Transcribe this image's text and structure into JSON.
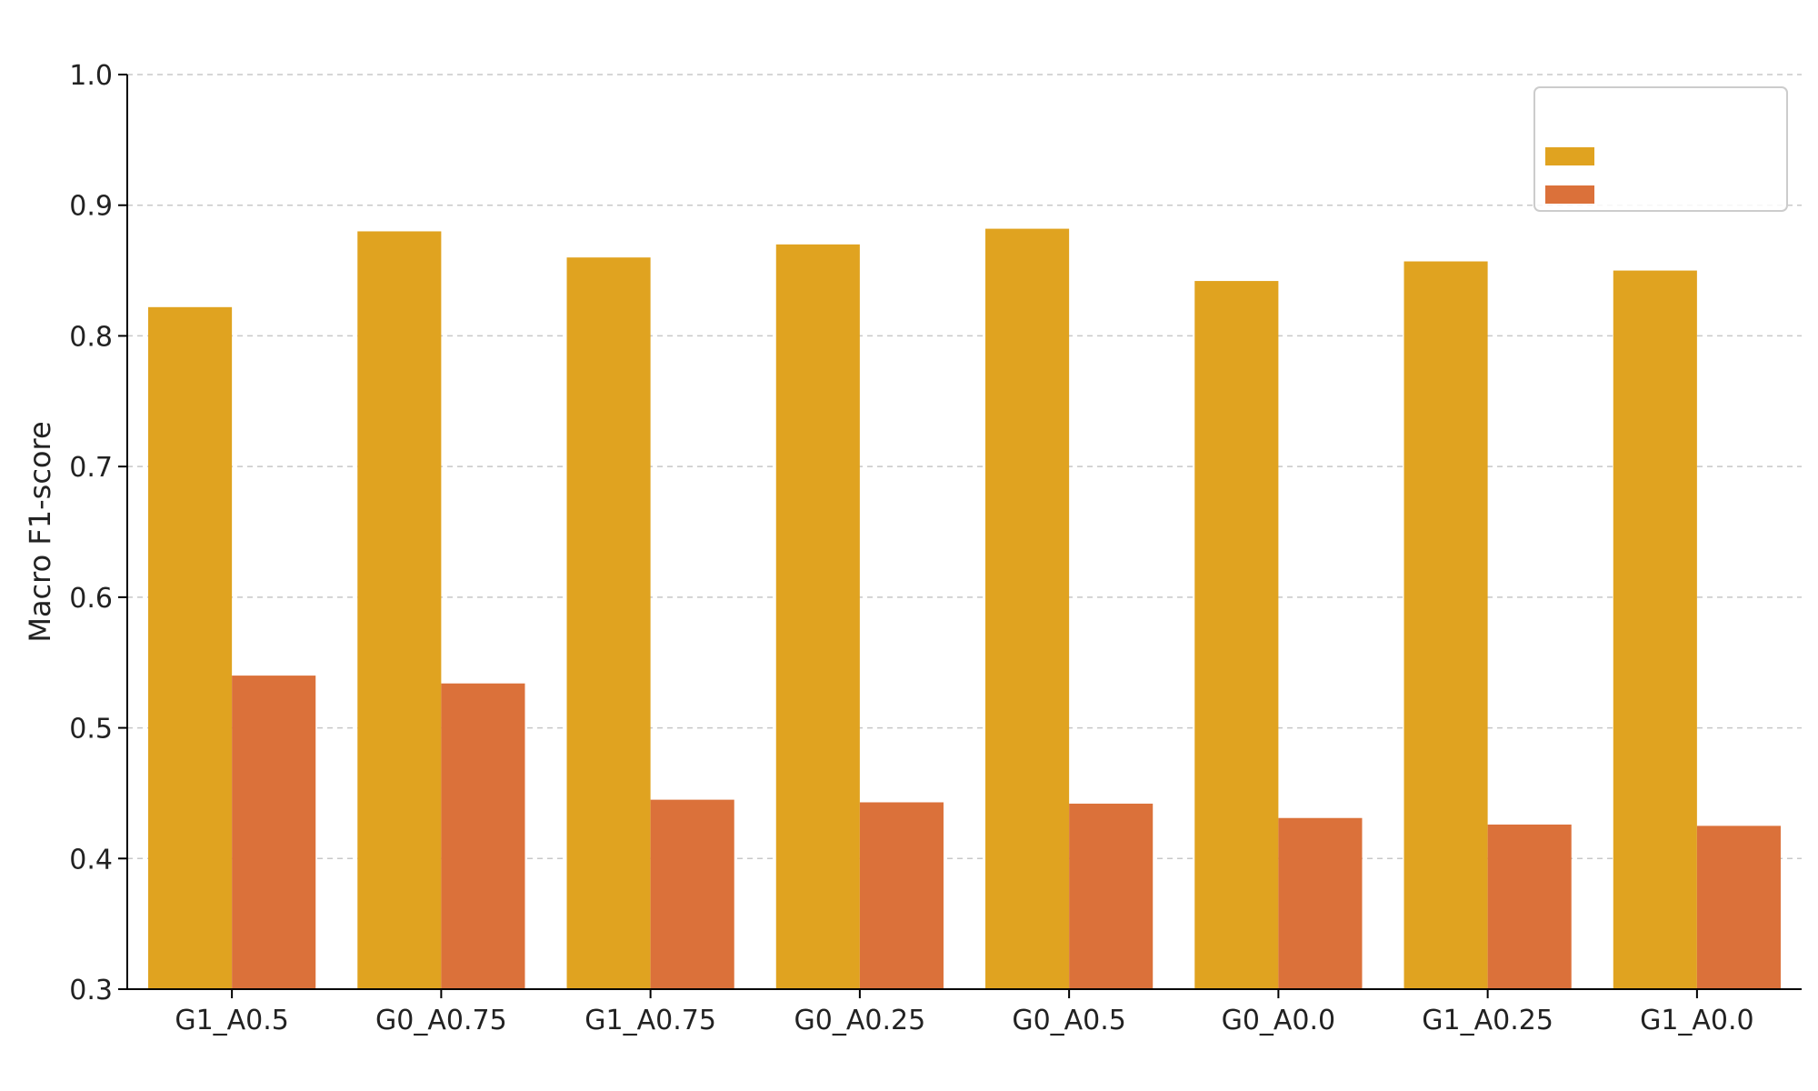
{
  "chart_data": {
    "type": "bar",
    "title": "",
    "xlabel": "",
    "ylabel": "Macro F1-score",
    "ylim": [
      0.3,
      1.0
    ],
    "yticks": [
      "0.3",
      "0.4",
      "0.5",
      "0.6",
      "0.7",
      "0.8",
      "0.9",
      "1.0"
    ],
    "grid": true,
    "legend": {
      "title": "",
      "placement": "top-right"
    },
    "categories": [
      "G1_A0.5",
      "G0_A0.75",
      "G1_A0.75",
      "G0_A0.25",
      "G0_A0.5",
      "G0_A0.0",
      "G1_A0.25",
      "G1_A0.0"
    ],
    "series": [
      {
        "name": "",
        "color": "#e0a320",
        "values": [
          0.822,
          0.88,
          0.86,
          0.87,
          0.882,
          0.842,
          0.857,
          0.85
        ]
      },
      {
        "name": "",
        "color": "#db713a",
        "values": [
          0.54,
          0.534,
          0.445,
          0.443,
          0.442,
          0.431,
          0.426,
          0.425
        ]
      }
    ]
  }
}
